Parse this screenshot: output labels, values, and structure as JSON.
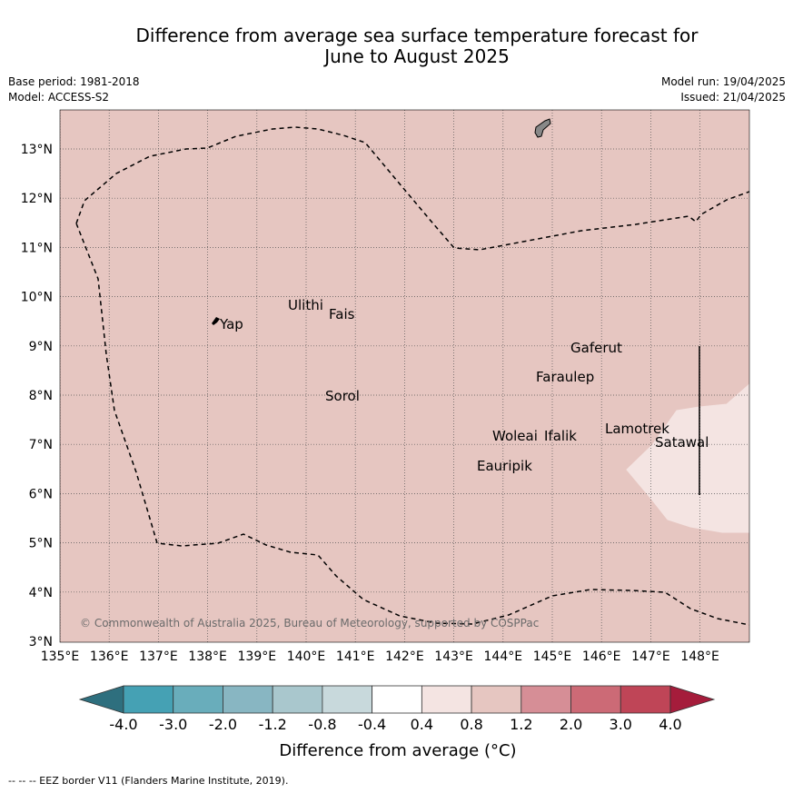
{
  "title_line1": "Difference from average sea surface temperature forecast for",
  "title_line2": "June to August 2025",
  "meta_left": [
    "Base period: 1981-2018",
    "Model: ACCESS-S2"
  ],
  "meta_right": [
    "Model run: 19/04/2025",
    "Issued: 21/04/2025"
  ],
  "copyright": "© Commonwealth of Australia 2025, Bureau of Meteorology, supported by COSPPac",
  "colorbar_label": "Difference from average (°C)",
  "colorbar_ticks": [
    "-4.0",
    "-3.0",
    "-2.0",
    "-1.2",
    "-0.8",
    "-0.4",
    "0.4",
    "0.8",
    "1.2",
    "2.0",
    "3.0",
    "4.0"
  ],
  "colorbar_colors": [
    "#2e6f7e",
    "#45a1b4",
    "#69adbb",
    "#88b6c2",
    "#a9c7cd",
    "#c8d9dc",
    "#ffffff",
    "#f4e4e2",
    "#e6c6c1",
    "#d68e96",
    "#cc6a76",
    "#bf4557",
    "#a51c3b"
  ],
  "footnote": "--  --  -- EEZ border V11 (Flanders Marine Institute, 2019).",
  "map": {
    "lon_range": [
      135,
      149
    ],
    "lat_range": [
      3,
      13.8
    ],
    "x_ticks": [
      "135°E",
      "136°E",
      "137°E",
      "138°E",
      "139°E",
      "140°E",
      "141°E",
      "142°E",
      "143°E",
      "144°E",
      "145°E",
      "146°E",
      "147°E",
      "148°E"
    ],
    "y_ticks": [
      "3°N",
      "4°N",
      "5°N",
      "6°N",
      "7°N",
      "8°N",
      "9°N",
      "10°N",
      "11°N",
      "12°N",
      "13°N"
    ],
    "background_color": "#e6c6c1",
    "anomaly_region_color": "#f4e4e2",
    "places": [
      "Yap",
      "Ulithi",
      "Fais",
      "Gaferut",
      "Faraulep",
      "Sorol",
      "Woleai",
      "Ifalik",
      "Lamotrek",
      "Satawal",
      "Eauripik"
    ]
  }
}
